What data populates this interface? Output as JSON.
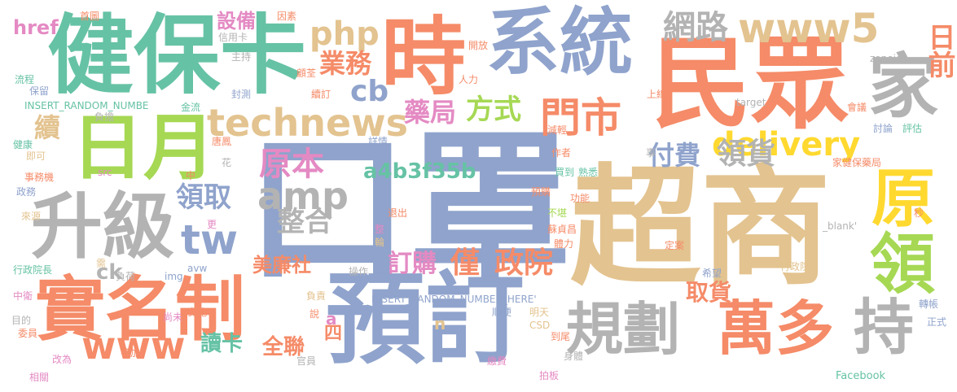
{
  "colors": {
    "blue": "#8fa3cc",
    "tan": "#e3c38f",
    "orange": "#f58b68",
    "green": "#66c2a5",
    "gray": "#b3b3b3",
    "pink": "#e48ac3",
    "lime": "#a6d854",
    "yellow": "#ffd92f"
  },
  "words": [
    {
      "text": "口罩",
      "color": "blue"
    },
    {
      "text": "超商",
      "color": "tan"
    },
    {
      "text": "民眾",
      "color": "orange"
    },
    {
      "text": "系統",
      "color": "blue"
    },
    {
      "text": "健保卡",
      "color": "green"
    },
    {
      "text": "預訂",
      "color": "blue"
    },
    {
      "text": "實名制",
      "color": "orange"
    },
    {
      "text": "日月",
      "color": "lime"
    },
    {
      "text": "升級",
      "color": "gray"
    },
    {
      "text": "時",
      "color": "orange"
    },
    {
      "text": "規劃",
      "color": "gray"
    },
    {
      "text": "萬多",
      "color": "orange"
    },
    {
      "text": "持",
      "color": "gray"
    },
    {
      "text": "家",
      "color": "gray"
    },
    {
      "text": "原",
      "color": "yellow"
    },
    {
      "text": "領",
      "color": "lime"
    },
    {
      "text": "technews",
      "color": "tan"
    },
    {
      "text": "www5",
      "color": "tan"
    },
    {
      "text": "門市",
      "color": "orange"
    },
    {
      "text": "delivery",
      "color": "yellow"
    },
    {
      "text": "www",
      "color": "orange"
    },
    {
      "text": "網路",
      "color": "gray"
    },
    {
      "text": "日前",
      "color": "orange"
    },
    {
      "text": "php",
      "color": "tan"
    },
    {
      "text": "業務",
      "color": "orange"
    },
    {
      "text": "cb",
      "color": "blue"
    },
    {
      "text": "藥局",
      "color": "pink"
    },
    {
      "text": "方式",
      "color": "lime"
    },
    {
      "text": "續",
      "color": "tan"
    },
    {
      "text": "付費",
      "color": "blue"
    },
    {
      "text": "領貨",
      "color": "gray"
    },
    {
      "text": "原本",
      "color": "pink"
    },
    {
      "text": "amp",
      "color": "gray"
    },
    {
      "text": "整合",
      "color": "gray"
    },
    {
      "text": "領取",
      "color": "blue"
    },
    {
      "text": "tw",
      "color": "blue"
    },
    {
      "text": "a4b3f35b",
      "color": "green"
    },
    {
      "text": "政院",
      "color": "orange"
    },
    {
      "text": "訂購",
      "color": "pink"
    },
    {
      "text": "僅",
      "color": "orange"
    },
    {
      "text": "美廉社",
      "color": "orange"
    },
    {
      "text": "取貨",
      "color": "orange"
    },
    {
      "text": "讀卡",
      "color": "green"
    },
    {
      "text": "全聯",
      "color": "orange"
    },
    {
      "text": "四",
      "color": "orange"
    },
    {
      "text": "ck",
      "color": "gray"
    },
    {
      "text": "設備",
      "color": "pink"
    },
    {
      "text": "href",
      "color": "pink"
    },
    {
      "text": "a",
      "color": "pink"
    },
    {
      "text": "n",
      "color": "tan"
    },
    {
      "text": "首圖",
      "color": "orange"
    },
    {
      "text": "因素",
      "color": "orange"
    },
    {
      "text": "信用卡",
      "color": "gray"
    },
    {
      "text": "開放",
      "color": "orange"
    },
    {
      "text": "主持",
      "color": "gray"
    },
    {
      "text": "顧荃",
      "color": "orange"
    },
    {
      "text": "zoneid",
      "color": "gray"
    },
    {
      "text": "流程",
      "color": "green"
    },
    {
      "text": "保留",
      "color": "blue"
    },
    {
      "text": "封測",
      "color": "blue"
    },
    {
      "text": "人力",
      "color": "orange"
    },
    {
      "text": "續訂",
      "color": "orange"
    },
    {
      "text": "上線",
      "color": "orange"
    },
    {
      "text": "INSERT_RANDOM_NUMBE",
      "color": "green"
    },
    {
      "text": "金流",
      "color": "green"
    },
    {
      "text": "target",
      "color": "gray"
    },
    {
      "text": "會議",
      "color": "orange"
    },
    {
      "text": "負擔",
      "color": "gray"
    },
    {
      "text": "減輕",
      "color": "orange"
    },
    {
      "text": "討論",
      "color": "blue"
    },
    {
      "text": "評估",
      "color": "green"
    },
    {
      "text": "健康",
      "color": "green"
    },
    {
      "text": "唐鳳",
      "color": "orange"
    },
    {
      "text": "詳情",
      "color": "blue"
    },
    {
      "text": "即可",
      "color": "tan"
    },
    {
      "text": "作者",
      "color": "orange"
    },
    {
      "text": "事",
      "color": "gray"
    },
    {
      "text": "家健保藥局",
      "color": "orange"
    },
    {
      "text": "事務機",
      "color": "orange"
    },
    {
      "text": "src",
      "color": "pink"
    },
    {
      "text": "中",
      "color": "orange"
    },
    {
      "text": "買到",
      "color": "green"
    },
    {
      "text": "熟悉",
      "color": "green"
    },
    {
      "text": "花",
      "color": "gray"
    },
    {
      "text": "政務",
      "color": "blue"
    },
    {
      "text": "預購",
      "color": "orange"
    },
    {
      "text": "功能",
      "color": "orange"
    },
    {
      "text": "來源",
      "color": "tan"
    },
    {
      "text": "退出",
      "color": "orange"
    },
    {
      "text": "不堪",
      "color": "lime"
    },
    {
      "text": "蘇貞昌",
      "color": "orange"
    },
    {
      "text": "秒",
      "color": "orange"
    },
    {
      "text": "更",
      "color": "pink"
    },
    {
      "text": "_blank'",
      "color": "gray"
    },
    {
      "text": "整",
      "color": "pink"
    },
    {
      "text": "輪",
      "color": "tan"
    },
    {
      "text": "體力",
      "color": "orange"
    },
    {
      "text": "定案",
      "color": "orange"
    },
    {
      "text": "行政院長",
      "color": "green"
    },
    {
      "text": "需",
      "color": "tan"
    },
    {
      "text": "負荷",
      "color": "gray"
    },
    {
      "text": "img",
      "color": "blue"
    },
    {
      "text": "avw",
      "color": "blue"
    },
    {
      "text": "操作",
      "color": "gray"
    },
    {
      "text": "希望",
      "color": "blue"
    },
    {
      "text": "行政院",
      "color": "tan"
    },
    {
      "text": "中衛",
      "color": "pink"
    },
    {
      "text": "負責",
      "color": "tan"
    },
    {
      "text": "INSERT_RANDOM_NUMBER_HERE'",
      "color": "blue"
    },
    {
      "text": "目的",
      "color": "gray"
    },
    {
      "text": "實施",
      "color": "orange"
    },
    {
      "text": "順便",
      "color": "blue"
    },
    {
      "text": "明天",
      "color": "tan"
    },
    {
      "text": "轉帳",
      "color": "blue"
    },
    {
      "text": "委員",
      "color": "orange"
    },
    {
      "text": "說",
      "color": "orange"
    },
    {
      "text": "正式",
      "color": "blue"
    },
    {
      "text": "尚未",
      "color": "pink"
    },
    {
      "text": "CSD",
      "color": "tan"
    },
    {
      "text": "到尾",
      "color": "orange"
    },
    {
      "text": "參加",
      "color": "orange"
    },
    {
      "text": "改為",
      "color": "pink"
    },
    {
      "text": "官員",
      "color": "gray"
    },
    {
      "text": "繳費",
      "color": "pink"
    },
    {
      "text": "身體",
      "color": "gray"
    },
    {
      "text": "相關",
      "color": "pink"
    },
    {
      "text": "拍板",
      "color": "pink"
    },
    {
      "text": "Facebook",
      "color": "green"
    }
  ]
}
